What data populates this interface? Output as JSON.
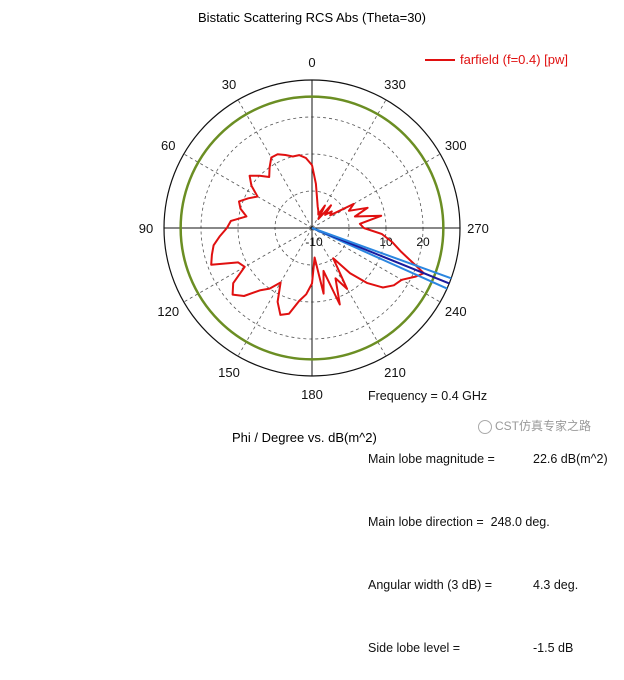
{
  "chart_data": {
    "type": "polar-line",
    "title": "Bistatic Scattering RCS Abs (Theta=30)",
    "xlabel": "Phi / Degree vs. dB(m^2)",
    "angle_ticks": [
      "0",
      "30",
      "60",
      "90",
      "120",
      "150",
      "180",
      "210",
      "240",
      "270",
      "300",
      "330"
    ],
    "angle_tick_values": [
      0,
      30,
      60,
      90,
      120,
      150,
      180,
      210,
      240,
      270,
      300,
      330
    ],
    "radial_ticks": [
      "-10",
      "10",
      "20"
    ],
    "radial_tick_values": [
      -10,
      10,
      20
    ],
    "radial_range": [
      -10,
      30
    ],
    "angle_direction": "counterclockwise",
    "zero_at": "top",
    "legend": {
      "label": "farfield (f=0.4) [pw]",
      "placement": "top-right"
    },
    "colors": {
      "series": "#e01010",
      "limit_circle": "#6b8e23",
      "lobe_dark": "#1a1a9c",
      "lobe_light": "#2b86e0",
      "grid": "#555555"
    },
    "limit_circle_radius_db": 25.5,
    "main_lobe_direction_deg": 248.0,
    "main_lobe_magnitude_db": 22.6,
    "angular_width_deg": 4.3,
    "series": [
      {
        "name": "farfield (f=0.4) [pw]",
        "phi": [
          0,
          5,
          10,
          15,
          20,
          25,
          30,
          35,
          40,
          45,
          50,
          55,
          60,
          65,
          70,
          75,
          80,
          85,
          90,
          95,
          100,
          105,
          110,
          115,
          120,
          125,
          130,
          135,
          140,
          145,
          150,
          155,
          160,
          165,
          170,
          175,
          180,
          185,
          190,
          195,
          200,
          205,
          210,
          215,
          220,
          225,
          230,
          235,
          240,
          245,
          248,
          250,
          255,
          260,
          265,
          270,
          275,
          280,
          285,
          290,
          295,
          300,
          305,
          310,
          315,
          320,
          325,
          330,
          335,
          340,
          345,
          350,
          355,
          360
        ],
        "rcs_db": [
          7,
          9,
          10,
          10,
          11,
          12,
          12,
          10,
          8,
          10,
          12,
          10,
          7,
          9,
          11,
          10,
          8,
          12,
          13,
          15,
          17,
          18,
          19,
          12,
          11,
          16,
          18,
          16,
          12,
          10,
          7,
          12,
          15,
          14,
          10,
          8,
          5,
          -2,
          8,
          2,
          12,
          5,
          9,
          0,
          6,
          11,
          15,
          17,
          18,
          21,
          22.6,
          20,
          15,
          12,
          9,
          4,
          3,
          9,
          2,
          6,
          1,
          3,
          -4,
          -3,
          -5,
          -2,
          -7,
          -3,
          -6,
          -5,
          -4,
          -2,
          2,
          7
        ]
      }
    ]
  },
  "info": {
    "frequency_label": "Frequency = 0.4 GHz",
    "main_lobe_magnitude_label": "Main lobe magnitude =",
    "main_lobe_magnitude_value": "22.6 dB(m^2)",
    "main_lobe_direction_label": "Main lobe direction =  248.0 deg.",
    "angular_width_label": "Angular width (3 dB) =",
    "angular_width_value": "4.3 deg.",
    "side_lobe_label": "Side lobe level =",
    "side_lobe_value": "-1.5 dB"
  },
  "watermark": {
    "text": "CST仿真专家之路"
  }
}
